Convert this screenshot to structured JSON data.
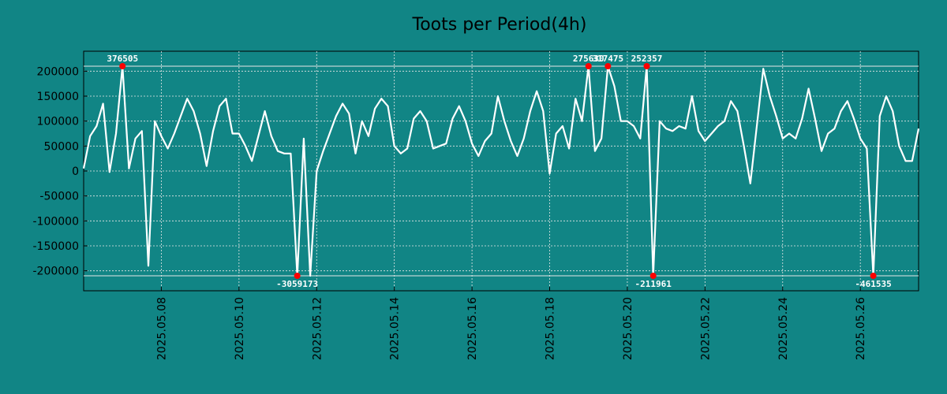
{
  "colors": {
    "background": "#118585",
    "line": "#ffffff",
    "grid": "#e8e8e8",
    "marker": "#ff0000",
    "axis": "#000000"
  },
  "chart_data": {
    "type": "line",
    "title": "Toots per Period(4h)",
    "xlabel": "",
    "ylabel": "",
    "xlim": [
      "2025-05-06 00:00",
      "2025-05-27 12:00"
    ],
    "ylim": [
      -240000,
      240000
    ],
    "grid": true,
    "legend": "none",
    "clip_band": [
      -210000,
      210000
    ],
    "x_ticks": [
      "2025.05.08",
      "2025.05.10",
      "2025.05.12",
      "2025.05.14",
      "2025.05.16",
      "2025.05.18",
      "2025.05.20",
      "2025.05.22",
      "2025.05.24",
      "2025.05.26"
    ],
    "y_ticks": [
      200000,
      150000,
      100000,
      50000,
      0,
      -50000,
      -100000,
      -150000,
      -200000
    ],
    "series": [
      {
        "name": "",
        "points": [
          [
            "2025-05-06 00:00",
            5000
          ],
          [
            "2025-05-06 04:00",
            70000
          ],
          [
            "2025-05-06 08:00",
            90000
          ],
          [
            "2025-05-06 12:00",
            135000
          ],
          [
            "2025-05-06 16:00",
            -2000
          ],
          [
            "2025-05-06 20:00",
            75000
          ],
          [
            "2025-05-07 00:00",
            210000
          ],
          [
            "2025-05-07 04:00",
            5000
          ],
          [
            "2025-05-07 08:00",
            65000
          ],
          [
            "2025-05-07 12:00",
            80000
          ],
          [
            "2025-05-07 16:00",
            -190000
          ],
          [
            "2025-05-07 20:00",
            100000
          ],
          [
            "2025-05-08 00:00",
            70000
          ],
          [
            "2025-05-08 04:00",
            45000
          ],
          [
            "2025-05-08 08:00",
            75000
          ],
          [
            "2025-05-08 12:00",
            110000
          ],
          [
            "2025-05-08 16:00",
            145000
          ],
          [
            "2025-05-08 20:00",
            120000
          ],
          [
            "2025-05-09 00:00",
            75000
          ],
          [
            "2025-05-09 04:00",
            10000
          ],
          [
            "2025-05-09 08:00",
            80000
          ],
          [
            "2025-05-09 12:00",
            130000
          ],
          [
            "2025-05-09 16:00",
            145000
          ],
          [
            "2025-05-09 20:00",
            75000
          ],
          [
            "2025-05-10 00:00",
            75000
          ],
          [
            "2025-05-10 04:00",
            50000
          ],
          [
            "2025-05-10 08:00",
            20000
          ],
          [
            "2025-05-10 12:00",
            70000
          ],
          [
            "2025-05-10 16:00",
            120000
          ],
          [
            "2025-05-10 20:00",
            70000
          ],
          [
            "2025-05-11 00:00",
            40000
          ],
          [
            "2025-05-11 04:00",
            35000
          ],
          [
            "2025-05-11 08:00",
            35000
          ],
          [
            "2025-05-11 12:00",
            -210000
          ],
          [
            "2025-05-11 16:00",
            65000
          ],
          [
            "2025-05-11 20:00",
            -210000
          ],
          [
            "2025-05-12 00:00",
            0
          ],
          [
            "2025-05-12 04:00",
            40000
          ],
          [
            "2025-05-12 08:00",
            75000
          ],
          [
            "2025-05-12 12:00",
            110000
          ],
          [
            "2025-05-12 16:00",
            135000
          ],
          [
            "2025-05-12 20:00",
            115000
          ],
          [
            "2025-05-13 00:00",
            35000
          ],
          [
            "2025-05-13 04:00",
            100000
          ],
          [
            "2025-05-13 08:00",
            70000
          ],
          [
            "2025-05-13 12:00",
            125000
          ],
          [
            "2025-05-13 16:00",
            145000
          ],
          [
            "2025-05-13 20:00",
            130000
          ],
          [
            "2025-05-14 00:00",
            50000
          ],
          [
            "2025-05-14 04:00",
            35000
          ],
          [
            "2025-05-14 08:00",
            45000
          ],
          [
            "2025-05-14 12:00",
            105000
          ],
          [
            "2025-05-14 16:00",
            120000
          ],
          [
            "2025-05-14 20:00",
            100000
          ],
          [
            "2025-05-15 00:00",
            45000
          ],
          [
            "2025-05-15 04:00",
            50000
          ],
          [
            "2025-05-15 08:00",
            55000
          ],
          [
            "2025-05-15 12:00",
            105000
          ],
          [
            "2025-05-15 16:00",
            130000
          ],
          [
            "2025-05-15 20:00",
            100000
          ],
          [
            "2025-05-16 00:00",
            55000
          ],
          [
            "2025-05-16 04:00",
            30000
          ],
          [
            "2025-05-16 08:00",
            60000
          ],
          [
            "2025-05-16 12:00",
            75000
          ],
          [
            "2025-05-16 16:00",
            150000
          ],
          [
            "2025-05-16 20:00",
            100000
          ],
          [
            "2025-05-17 00:00",
            60000
          ],
          [
            "2025-05-17 04:00",
            30000
          ],
          [
            "2025-05-17 08:00",
            65000
          ],
          [
            "2025-05-17 12:00",
            120000
          ],
          [
            "2025-05-17 16:00",
            160000
          ],
          [
            "2025-05-17 20:00",
            120000
          ],
          [
            "2025-05-18 00:00",
            -5000
          ],
          [
            "2025-05-18 04:00",
            75000
          ],
          [
            "2025-05-18 08:00",
            90000
          ],
          [
            "2025-05-18 12:00",
            45000
          ],
          [
            "2025-05-18 16:00",
            145000
          ],
          [
            "2025-05-18 20:00",
            100000
          ],
          [
            "2025-05-19 00:00",
            210000
          ],
          [
            "2025-05-19 04:00",
            40000
          ],
          [
            "2025-05-19 08:00",
            65000
          ],
          [
            "2025-05-19 12:00",
            210000
          ],
          [
            "2025-05-19 16:00",
            170000
          ],
          [
            "2025-05-19 20:00",
            100000
          ],
          [
            "2025-05-20 00:00",
            100000
          ],
          [
            "2025-05-20 04:00",
            90000
          ],
          [
            "2025-05-20 08:00",
            65000
          ],
          [
            "2025-05-20 12:00",
            210000
          ],
          [
            "2025-05-20 16:00",
            -210000
          ],
          [
            "2025-05-20 20:00",
            100000
          ],
          [
            "2025-05-21 00:00",
            85000
          ],
          [
            "2025-05-21 04:00",
            80000
          ],
          [
            "2025-05-21 08:00",
            90000
          ],
          [
            "2025-05-21 12:00",
            85000
          ],
          [
            "2025-05-21 16:00",
            150000
          ],
          [
            "2025-05-21 20:00",
            80000
          ],
          [
            "2025-05-22 00:00",
            60000
          ],
          [
            "2025-05-22 04:00",
            75000
          ],
          [
            "2025-05-22 08:00",
            90000
          ],
          [
            "2025-05-22 12:00",
            100000
          ],
          [
            "2025-05-22 16:00",
            140000
          ],
          [
            "2025-05-22 20:00",
            120000
          ],
          [
            "2025-05-23 00:00",
            50000
          ],
          [
            "2025-05-23 04:00",
            -25000
          ],
          [
            "2025-05-23 08:00",
            90000
          ],
          [
            "2025-05-23 12:00",
            205000
          ],
          [
            "2025-05-23 16:00",
            150000
          ],
          [
            "2025-05-23 20:00",
            110000
          ],
          [
            "2025-05-24 00:00",
            65000
          ],
          [
            "2025-05-24 04:00",
            75000
          ],
          [
            "2025-05-24 08:00",
            65000
          ],
          [
            "2025-05-24 12:00",
            105000
          ],
          [
            "2025-05-24 16:00",
            165000
          ],
          [
            "2025-05-24 20:00",
            105000
          ],
          [
            "2025-05-25 00:00",
            40000
          ],
          [
            "2025-05-25 04:00",
            75000
          ],
          [
            "2025-05-25 08:00",
            85000
          ],
          [
            "2025-05-25 12:00",
            120000
          ],
          [
            "2025-05-25 16:00",
            140000
          ],
          [
            "2025-05-25 20:00",
            105000
          ],
          [
            "2025-05-26 00:00",
            65000
          ],
          [
            "2025-05-26 04:00",
            45000
          ],
          [
            "2025-05-26 08:00",
            -210000
          ],
          [
            "2025-05-26 12:00",
            110000
          ],
          [
            "2025-05-26 16:00",
            150000
          ],
          [
            "2025-05-26 20:00",
            120000
          ],
          [
            "2025-05-27 00:00",
            50000
          ],
          [
            "2025-05-27 04:00",
            20000
          ],
          [
            "2025-05-27 08:00",
            20000
          ],
          [
            "2025-05-27 12:00",
            85000
          ]
        ]
      }
    ],
    "annotations": [
      {
        "x": "2025-05-07 00:00",
        "y": 210000,
        "text": "376505",
        "side": "top"
      },
      {
        "x": "2025-05-11 12:00",
        "y": -210000,
        "text": "-3059173",
        "side": "bottom"
      },
      {
        "x": "2025-05-19 00:00",
        "y": 210000,
        "text": "275630",
        "side": "top"
      },
      {
        "x": "2025-05-19 12:00",
        "y": 210000,
        "text": "317475",
        "side": "top"
      },
      {
        "x": "2025-05-20 12:00",
        "y": 210000,
        "text": "252357",
        "side": "top"
      },
      {
        "x": "2025-05-20 16:00",
        "y": -210000,
        "text": "-211961",
        "side": "bottom"
      },
      {
        "x": "2025-05-26 08:00",
        "y": -210000,
        "text": "-461535",
        "side": "bottom"
      }
    ]
  }
}
